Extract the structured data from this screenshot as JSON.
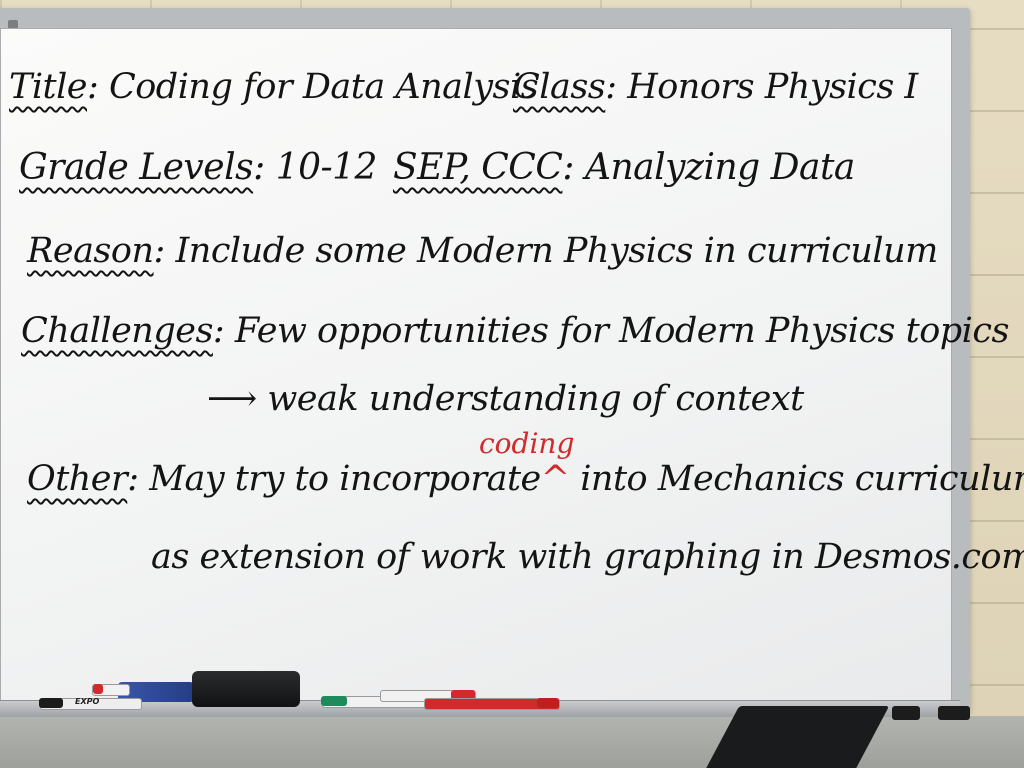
{
  "board": {
    "title_label": "Title",
    "title_sep": ":",
    "title_value": "Coding for Data Analysis",
    "class_label": "Class",
    "class_sep": ":",
    "class_value": "Honors Physics I",
    "grade_label": "Grade Levels",
    "grade_sep": ":",
    "grade_value": "10-12",
    "sep_label": "SEP, CCC",
    "sep_sep": ":",
    "sep_value": "Analyzing Data",
    "reason_label": "Reason",
    "reason_sep": ":",
    "reason_value": "Include some Modern Physics in curriculum",
    "challenges_label": "Challenges",
    "challenges_sep": ":",
    "challenges_value": "Few opportunities for Modern Physics topics",
    "arrow": "⟶",
    "consequence": "weak understanding of context",
    "other_label": "Other",
    "other_sep": ":",
    "other_value_a": "May try to incorporate",
    "caret": "^",
    "other_value_b": "into Mechanics curriculum",
    "insert_word": "coding",
    "other_line2": "as extension of work with graphing in Desmos.com."
  },
  "colors": {
    "ink": "#141414",
    "red_ink": "#d22a2a"
  },
  "tray": {
    "marker_brand": "EXPO"
  }
}
